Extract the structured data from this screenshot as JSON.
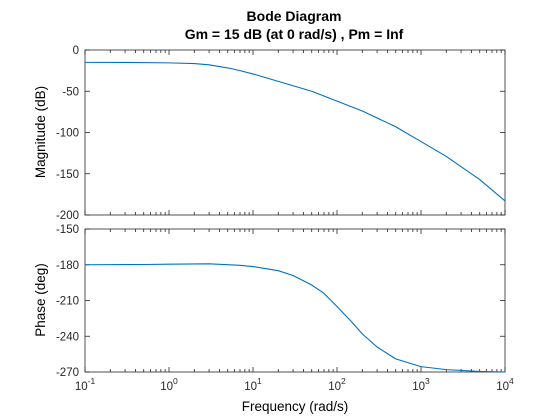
{
  "chart_data": {
    "type": "line",
    "title": "Bode Diagram",
    "subtitle": "Gm = 15 dB (at 0 rad/s) ,  Pm = Inf",
    "xlabel": "Frequency  (rad/s)",
    "xscale": "log",
    "xlim": [
      0.1,
      10000
    ],
    "xticks": [
      {
        "value": 0.1,
        "base": "10",
        "exp": "-1"
      },
      {
        "value": 1,
        "base": "10",
        "exp": "0"
      },
      {
        "value": 10,
        "base": "10",
        "exp": "1"
      },
      {
        "value": 100,
        "base": "10",
        "exp": "2"
      },
      {
        "value": 1000,
        "base": "10",
        "exp": "3"
      },
      {
        "value": 10000,
        "base": "10",
        "exp": "4"
      }
    ],
    "line_color": "#0072BD",
    "panels": [
      {
        "ylabel": "Magnitude (dB)",
        "ylim": [
          -200,
          0
        ],
        "yticks": [
          0,
          -50,
          -100,
          -150,
          -200
        ],
        "series": [
          {
            "x": [
              0.1,
              0.3,
              1,
              2,
              3,
              5,
              7,
              10,
              20,
              50,
              100,
              200,
              500,
              1000,
              2000,
              5000,
              10000
            ],
            "y": [
              -15,
              -15.1,
              -15.6,
              -16.4,
              -18,
              -21.7,
              -25,
              -29,
              -38,
              -50,
              -62,
              -74,
              -93,
              -111,
              -129,
              -157,
              -183
            ]
          }
        ]
      },
      {
        "ylabel": "Phase (deg)",
        "ylim": [
          -270,
          -150
        ],
        "yticks": [
          -150,
          -180,
          -210,
          -240,
          -270
        ],
        "series": [
          {
            "x": [
              0.1,
              0.5,
              1,
              3,
              7,
              10,
              20,
              30,
              50,
              70,
              100,
              150,
              200,
              300,
              500,
              1000,
              2000,
              5000,
              10000
            ],
            "y": [
              -180,
              -179.8,
              -179.5,
              -179.2,
              -180.5,
              -181.5,
              -185,
              -189,
              -197,
              -204,
              -215,
              -228,
              -238,
              -249,
              -259,
              -265.5,
              -268,
              -269.5,
              -270
            ]
          }
        ]
      }
    ]
  }
}
